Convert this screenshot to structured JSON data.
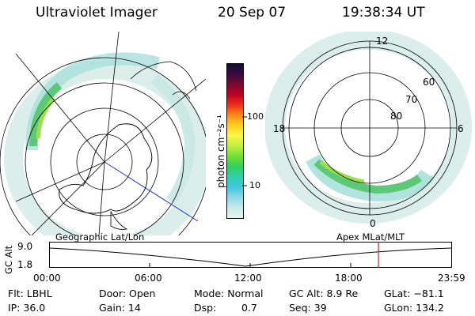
{
  "header": {
    "instrument": "Ultraviolet Imager",
    "date": "20 Sep 07",
    "time": "19:38:34 UT"
  },
  "colorbar": {
    "label": "photon cm⁻²s⁻¹",
    "ticks": [
      "100",
      "10"
    ],
    "colors": [
      "#10103a",
      "#3a0a40",
      "#7a0830",
      "#c00020",
      "#f0301a",
      "#ff8c18",
      "#ffd020",
      "#f8f848",
      "#c0f040",
      "#70e030",
      "#30d060",
      "#30d0b0",
      "#40c8e0",
      "#90d8e8",
      "#c8ece8",
      "#e8f4f0"
    ]
  },
  "geo_map": {
    "label": "Geographic Lat/Lon"
  },
  "polar_map": {
    "label": "Apex MLat/MLT",
    "lat_labels": [
      "60",
      "70",
      "80"
    ],
    "mlt_labels": [
      "12",
      "18",
      "6",
      "0"
    ]
  },
  "altitude_plot": {
    "ylabel": "GC Alt",
    "yticks": [
      "9.0",
      "1.8"
    ],
    "xticks": [
      "00:00",
      "06:00",
      "12:00",
      "18:00",
      "23:59"
    ]
  },
  "footer": {
    "flt": "Flt: LBHL",
    "ip": "IP: 36.0",
    "door": "Door: Open",
    "gain": "Gain: 14",
    "mode": "Mode: Normal",
    "dsp_label": "Dsp:",
    "dsp_value": "0.7",
    "gcalt": "GC Alt: 8.9 Re",
    "seq": "Seq: 39",
    "glat": "GLat: −81.1",
    "glon": "GLon: 134.2"
  }
}
